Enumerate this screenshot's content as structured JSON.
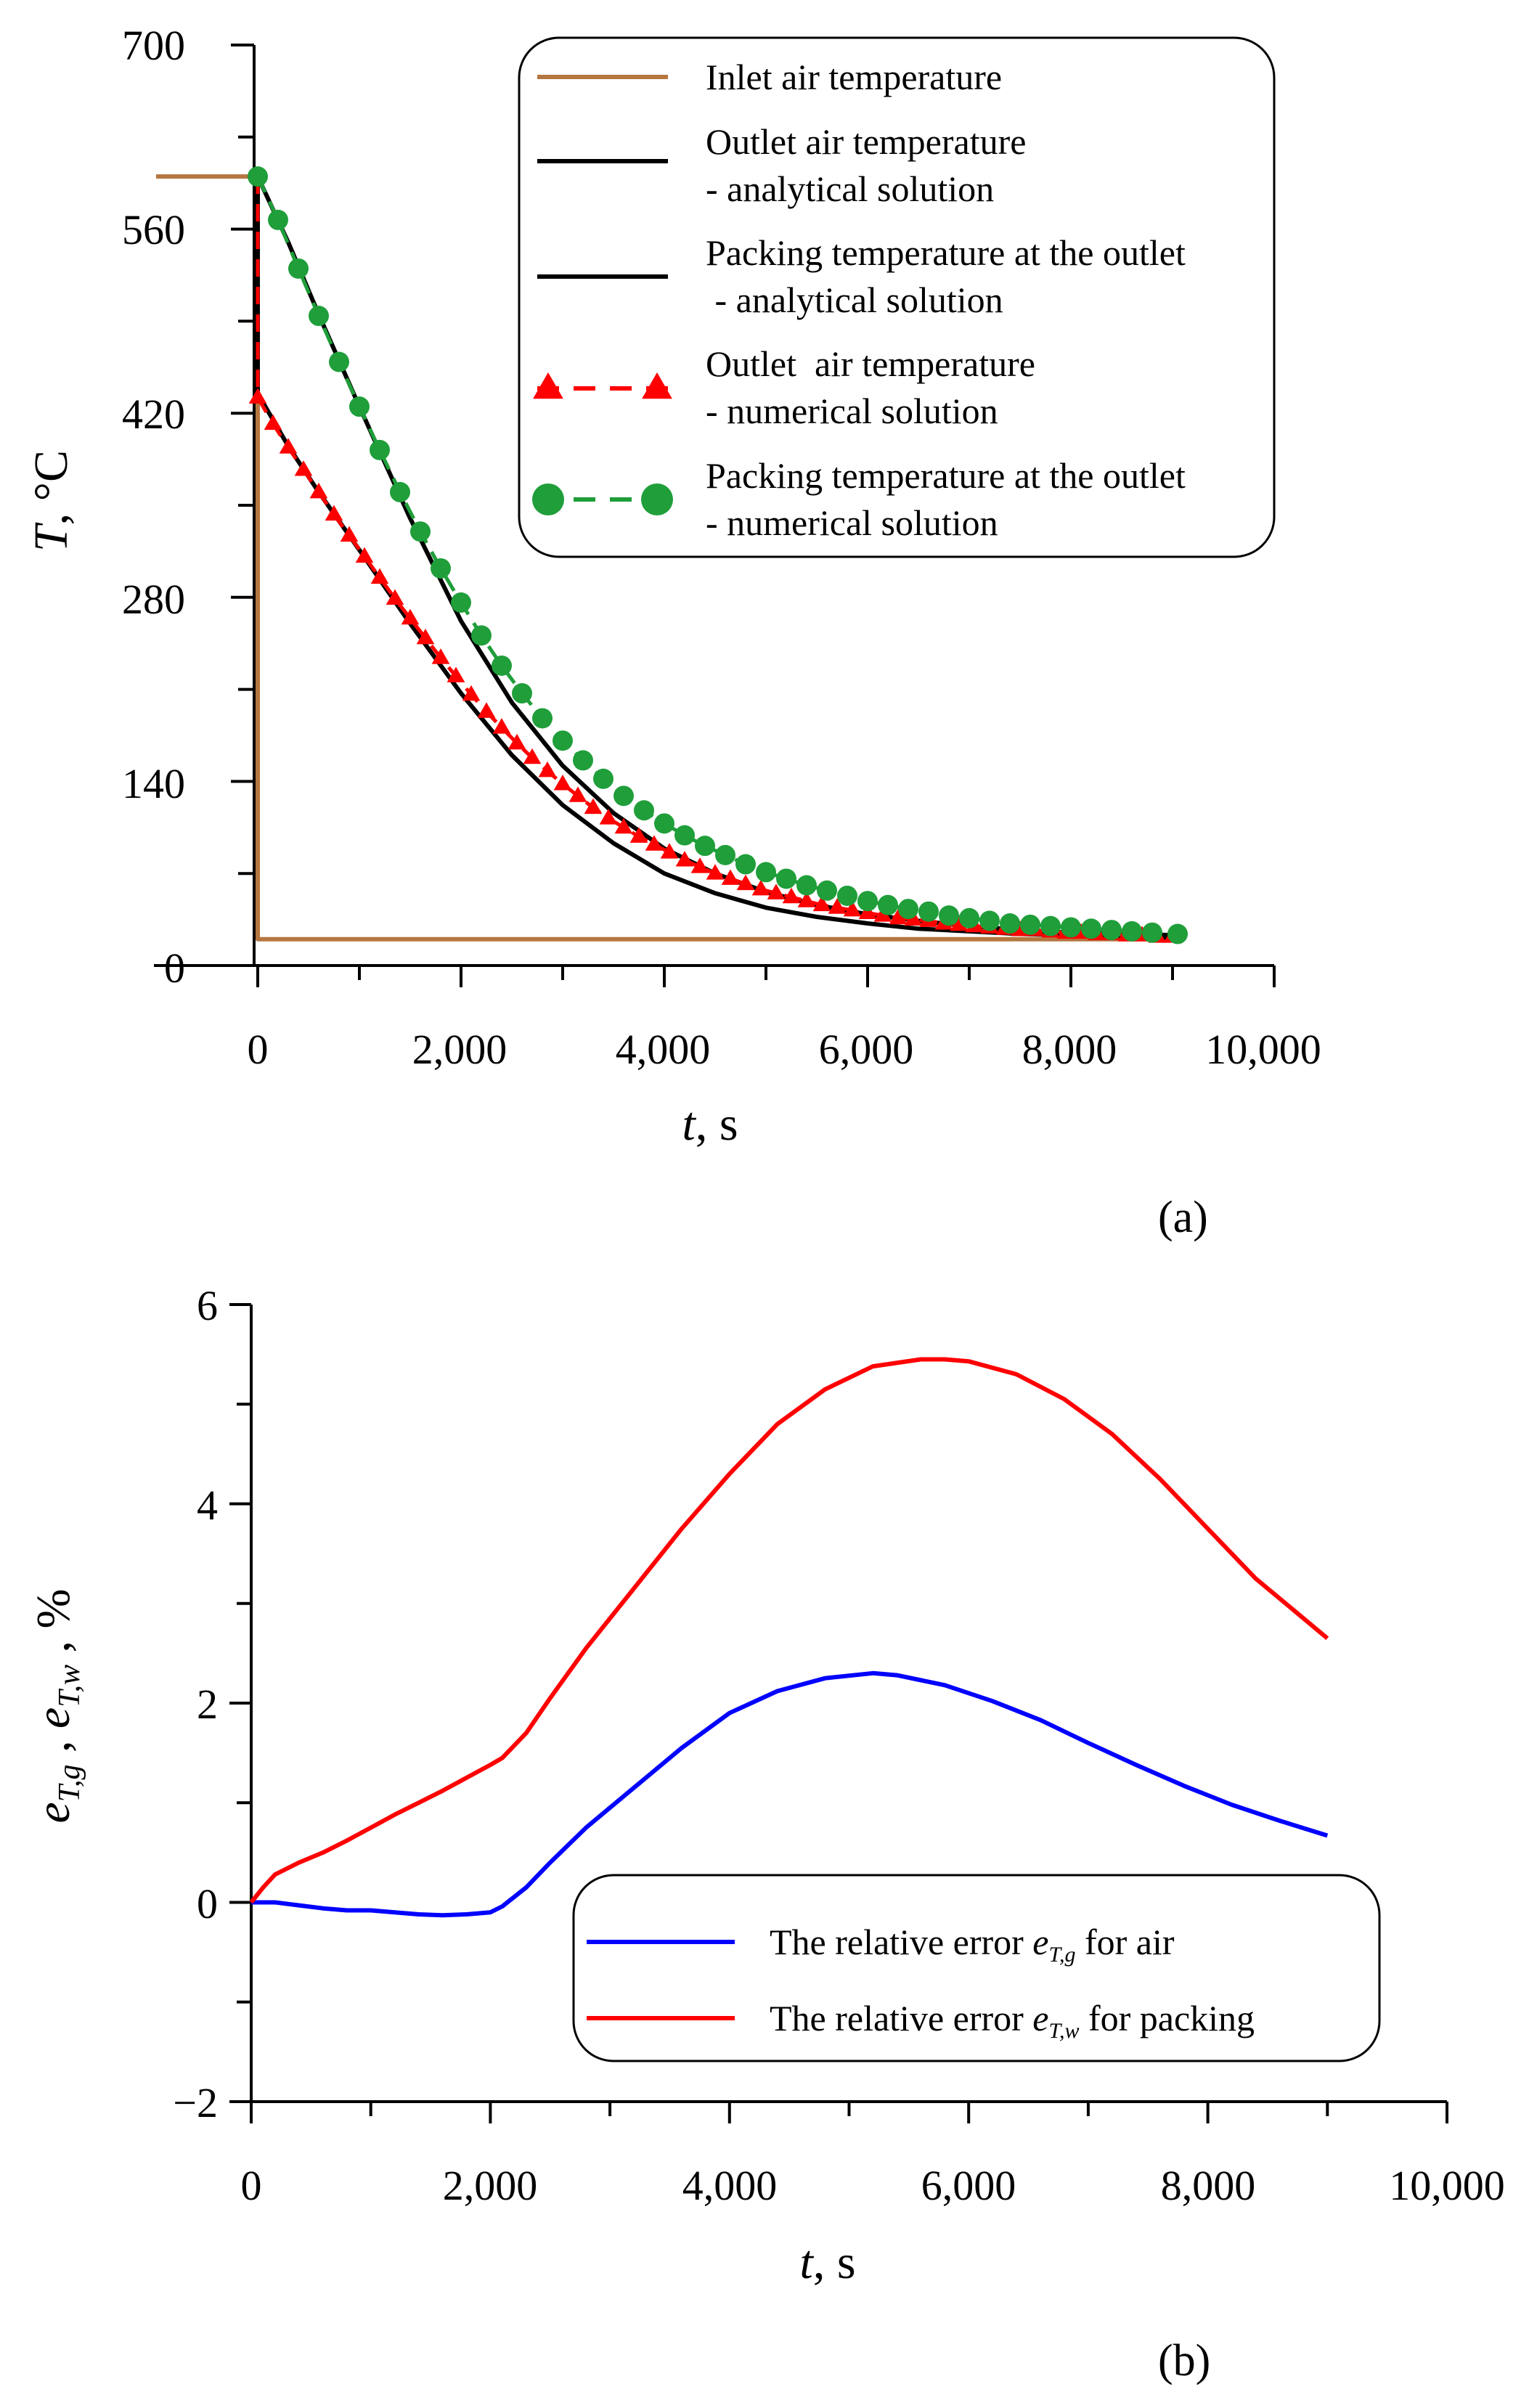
{
  "colors": {
    "inlet": "#b5763f",
    "outlet_analytical": "#000000",
    "packing_analytical": "#000000",
    "outlet_numerical": "#ff0000",
    "packing_numerical": "#1f9e3a",
    "error_air": "#0000ff",
    "error_packing": "#ff0000"
  },
  "chart_data": [
    {
      "type": "line",
      "panel_label": "(a)",
      "xlabel_var": "t",
      "xlabel_unit": ", s",
      "ylabel_var": "T",
      "ylabel_unit": ", °C",
      "xlim": [
        0,
        10000
      ],
      "ylim": [
        0,
        700
      ],
      "xticks": [
        0,
        2000,
        4000,
        6000,
        8000,
        10000
      ],
      "xtick_labels": [
        "0",
        "2,000",
        "4,000",
        "6,000",
        "8,000",
        "10,000"
      ],
      "yticks": [
        0,
        140,
        280,
        420,
        560,
        700
      ],
      "ytick_labels": [
        "0",
        "140",
        "280",
        "420",
        "560",
        "700"
      ],
      "legend_position": "top-right",
      "series": [
        {
          "name": "Inlet air temperature",
          "style": "solid",
          "marker": "none",
          "x": [
            -1000,
            0,
            0,
            9050
          ],
          "y": [
            600,
            600,
            20,
            20
          ]
        },
        {
          "name": "Outlet air temperature - analytical solution",
          "legend_lines": [
            "Outlet air temperature",
            "- analytical solution"
          ],
          "style": "solid",
          "marker": "none",
          "x": [
            0,
            0,
            300,
            600,
            1000,
            1500,
            2000,
            2500,
            3000,
            3500,
            4000,
            4500,
            5000,
            5500,
            6000,
            6500,
            7000,
            7500,
            8000,
            8500,
            9050
          ],
          "y": [
            600,
            435,
            395,
            360,
            316,
            260,
            207,
            160,
            122,
            93,
            70,
            55,
            44,
            37,
            32,
            28,
            26,
            24,
            23,
            22,
            21
          ]
        },
        {
          "name": "Packing temperature at the outlet - analytical solution",
          "legend_lines": [
            "Packing temperature at the outlet",
            " - analytical solution"
          ],
          "style": "solid",
          "marker": "none",
          "x": [
            0,
            300,
            600,
            1000,
            1500,
            2000,
            2500,
            3000,
            3500,
            4000,
            4500,
            5000,
            5500,
            6000,
            6500,
            7000,
            7500,
            8000,
            8500,
            9050
          ],
          "y": [
            600,
            550,
            495,
            425,
            340,
            262,
            200,
            152,
            116,
            89,
            70,
            56,
            46,
            39,
            34,
            30,
            27,
            25,
            24,
            23
          ]
        },
        {
          "name": "Outlet  air temperature - numerical solution",
          "legend_lines": [
            "Outlet  air temperature",
            "- numerical solution"
          ],
          "style": "dashed",
          "marker": "triangle",
          "x": [
            0,
            0,
            150,
            300,
            450,
            600,
            750,
            900,
            1050,
            1200,
            1350,
            1500,
            1650,
            1800,
            1950,
            2100,
            2250,
            2400,
            2550,
            2700,
            2850,
            3000,
            3150,
            3300,
            3450,
            3600,
            3750,
            3900,
            4050,
            4200,
            4350,
            4500,
            4650,
            4800,
            4950,
            5100,
            5250,
            5400,
            5550,
            5700,
            5850,
            6000,
            6150,
            6300,
            6450,
            6600,
            6750,
            6900,
            7050,
            7200,
            7350,
            7500,
            7650,
            7800,
            7950,
            8100,
            8250,
            8400,
            8550,
            8700,
            8850,
            9000
          ],
          "y": [
            600,
            432,
            412,
            394,
            377,
            360,
            343,
            327,
            311,
            295,
            279,
            264,
            249,
            234,
            220,
            206,
            193,
            181,
            169,
            158,
            148,
            138,
            129,
            120,
            112,
            105,
            98,
            92,
            86,
            80,
            75,
            70,
            66,
            62,
            58,
            55,
            52,
            49,
            46,
            44,
            42,
            40,
            38,
            36,
            35,
            34,
            32,
            31,
            30,
            29,
            28,
            27,
            27,
            26,
            25,
            25,
            24,
            24,
            23,
            23,
            22,
            22
          ]
        },
        {
          "name": "Packing temperature at the outlet - numerical solution",
          "legend_lines": [
            "Packing temperature at the outlet",
            "- numerical solution"
          ],
          "style": "dashed",
          "marker": "circle",
          "x": [
            0,
            200,
            400,
            600,
            800,
            1000,
            1200,
            1400,
            1600,
            1800,
            2000,
            2200,
            2400,
            2600,
            2800,
            3000,
            3200,
            3400,
            3600,
            3800,
            4000,
            4200,
            4400,
            4600,
            4800,
            5000,
            5200,
            5400,
            5600,
            5800,
            6000,
            6200,
            6400,
            6600,
            6800,
            7000,
            7200,
            7400,
            7600,
            7800,
            8000,
            8200,
            8400,
            8600,
            8800,
            9050
          ],
          "y": [
            600,
            567,
            530,
            494,
            459,
            425,
            392,
            360,
            330,
            302,
            276,
            251,
            228,
            207,
            188,
            171,
            156,
            142,
            129,
            118,
            108,
            99,
            91,
            84,
            77,
            71,
            66,
            61,
            57,
            53,
            49,
            46,
            43,
            41,
            38,
            36,
            34,
            32,
            31,
            30,
            29,
            28,
            27,
            26,
            25,
            24
          ]
        }
      ]
    },
    {
      "type": "line",
      "panel_label": "(b)",
      "xlabel_var": "t",
      "xlabel_unit": ", s",
      "ylabel_text": "e",
      "ylabel_sub1": "T,g",
      "ylabel_sub2": "T,w",
      "ylabel_unit": " , %",
      "xlim": [
        0,
        10000
      ],
      "ylim": [
        -2,
        6
      ],
      "xticks": [
        0,
        2000,
        4000,
        6000,
        8000,
        10000
      ],
      "xtick_labels": [
        "0",
        "2,000",
        "4,000",
        "6,000",
        "8,000",
        "10,000"
      ],
      "yticks": [
        -2,
        0,
        2,
        4,
        6
      ],
      "ytick_labels": [
        "−2",
        "0",
        "2",
        "4",
        "6"
      ],
      "legend_position": "bottom-right",
      "series": [
        {
          "name": "The relative error e_T,g for air",
          "legend_pre": "The relative error ",
          "legend_sym": "e",
          "legend_sub": "T,g",
          "legend_post": " for air",
          "x": [
            0,
            200,
            400,
            600,
            800,
            1000,
            1200,
            1400,
            1600,
            1800,
            2000,
            2100,
            2300,
            2500,
            2800,
            3200,
            3600,
            4000,
            4400,
            4800,
            5200,
            5400,
            5800,
            6200,
            6600,
            7000,
            7400,
            7800,
            8200,
            8600,
            9000
          ],
          "y": [
            0,
            0.0,
            -0.03,
            -0.06,
            -0.08,
            -0.08,
            -0.1,
            -0.12,
            -0.13,
            -0.12,
            -0.1,
            -0.04,
            0.15,
            0.4,
            0.75,
            1.15,
            1.55,
            1.9,
            2.12,
            2.25,
            2.3,
            2.28,
            2.18,
            2.02,
            1.83,
            1.6,
            1.38,
            1.17,
            0.98,
            0.82,
            0.67
          ]
        },
        {
          "name": "The relative error e_T,w for packing",
          "legend_pre": "The relative error ",
          "legend_sym": "e",
          "legend_sub": "T,w",
          "legend_post": " for packing",
          "x": [
            0,
            100,
            200,
            400,
            600,
            800,
            1000,
            1200,
            1400,
            1600,
            1800,
            2000,
            2100,
            2300,
            2500,
            2800,
            3200,
            3600,
            4000,
            4400,
            4800,
            5200,
            5600,
            5800,
            6000,
            6400,
            6800,
            7200,
            7600,
            8000,
            8400,
            8800,
            9000
          ],
          "y": [
            0,
            0.15,
            0.28,
            0.4,
            0.5,
            0.62,
            0.75,
            0.88,
            1.0,
            1.12,
            1.25,
            1.38,
            1.45,
            1.7,
            2.05,
            2.55,
            3.15,
            3.75,
            4.3,
            4.8,
            5.15,
            5.38,
            5.45,
            5.45,
            5.43,
            5.3,
            5.05,
            4.7,
            4.25,
            3.75,
            3.25,
            2.85,
            2.65
          ]
        }
      ]
    }
  ]
}
